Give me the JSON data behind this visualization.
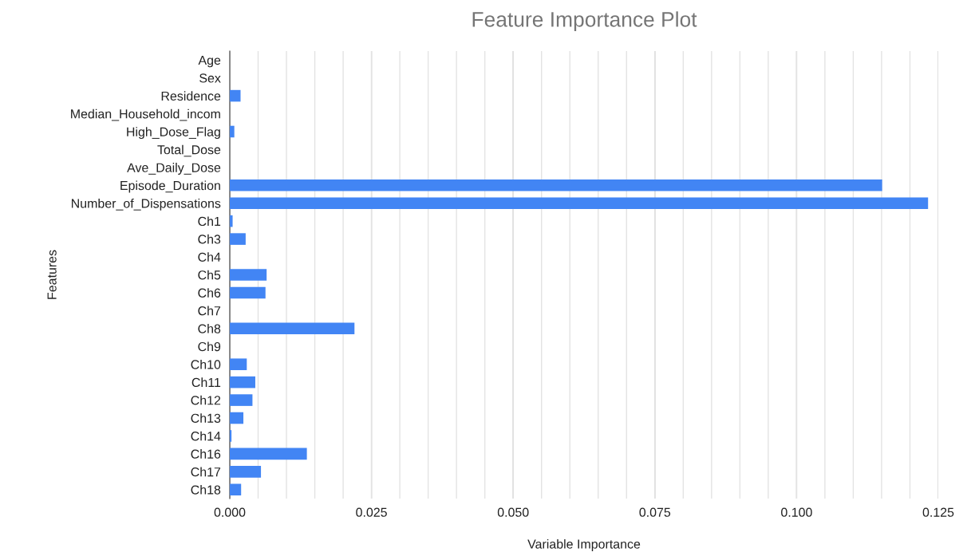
{
  "chart_data": {
    "type": "bar",
    "orientation": "horizontal",
    "title": "Feature Importance Plot",
    "xlabel": "Variable Importance",
    "ylabel": "Features",
    "categories": [
      "Age",
      "Sex",
      "Residence",
      "Median_Household_incom",
      "High_Dose_Flag",
      "Total_Dose",
      "Ave_Daily_Dose",
      "Episode_Duration",
      "Number_of_Dispensations",
      "Ch1",
      "Ch3",
      "Ch4",
      "Ch5",
      "Ch6",
      "Ch7",
      "Ch8",
      "Ch9",
      "Ch10",
      "Ch11",
      "Ch12",
      "Ch13",
      "Ch14",
      "Ch16",
      "Ch17",
      "Ch18"
    ],
    "values": [
      0,
      0,
      0.0019,
      0,
      0.0008,
      0,
      0,
      0.1151,
      0.1232,
      0.0005,
      0.0028,
      0,
      0.0065,
      0.0063,
      0,
      0.022,
      0,
      0.003,
      0.0045,
      0.004,
      0.0024,
      0.0003,
      0.0136,
      0.0055,
      0.002
    ],
    "color": "#4285f4",
    "xlim": [
      0,
      0.125
    ],
    "xticks": [
      {
        "value": 0,
        "label": "0.000"
      },
      {
        "value": 0.005,
        "label": null
      },
      {
        "value": 0.01,
        "label": null
      },
      {
        "value": 0.015,
        "label": null
      },
      {
        "value": 0.02,
        "label": null
      },
      {
        "value": 0.025,
        "label": "0.025"
      },
      {
        "value": 0.03,
        "label": null
      },
      {
        "value": 0.035,
        "label": null
      },
      {
        "value": 0.04,
        "label": null
      },
      {
        "value": 0.045,
        "label": null
      },
      {
        "value": 0.05,
        "label": "0.050"
      },
      {
        "value": 0.055,
        "label": null
      },
      {
        "value": 0.06,
        "label": null
      },
      {
        "value": 0.065,
        "label": null
      },
      {
        "value": 0.07,
        "label": null
      },
      {
        "value": 0.075,
        "label": "0.075"
      },
      {
        "value": 0.08,
        "label": null
      },
      {
        "value": 0.085,
        "label": null
      },
      {
        "value": 0.09,
        "label": null
      },
      {
        "value": 0.095,
        "label": null
      },
      {
        "value": 0.1,
        "label": "0.100"
      },
      {
        "value": 0.105,
        "label": null
      },
      {
        "value": 0.11,
        "label": null
      },
      {
        "value": 0.115,
        "label": null
      },
      {
        "value": 0.12,
        "label": null
      },
      {
        "value": 0.125,
        "label": "0.125"
      }
    ],
    "grid": "x",
    "legend": false
  }
}
